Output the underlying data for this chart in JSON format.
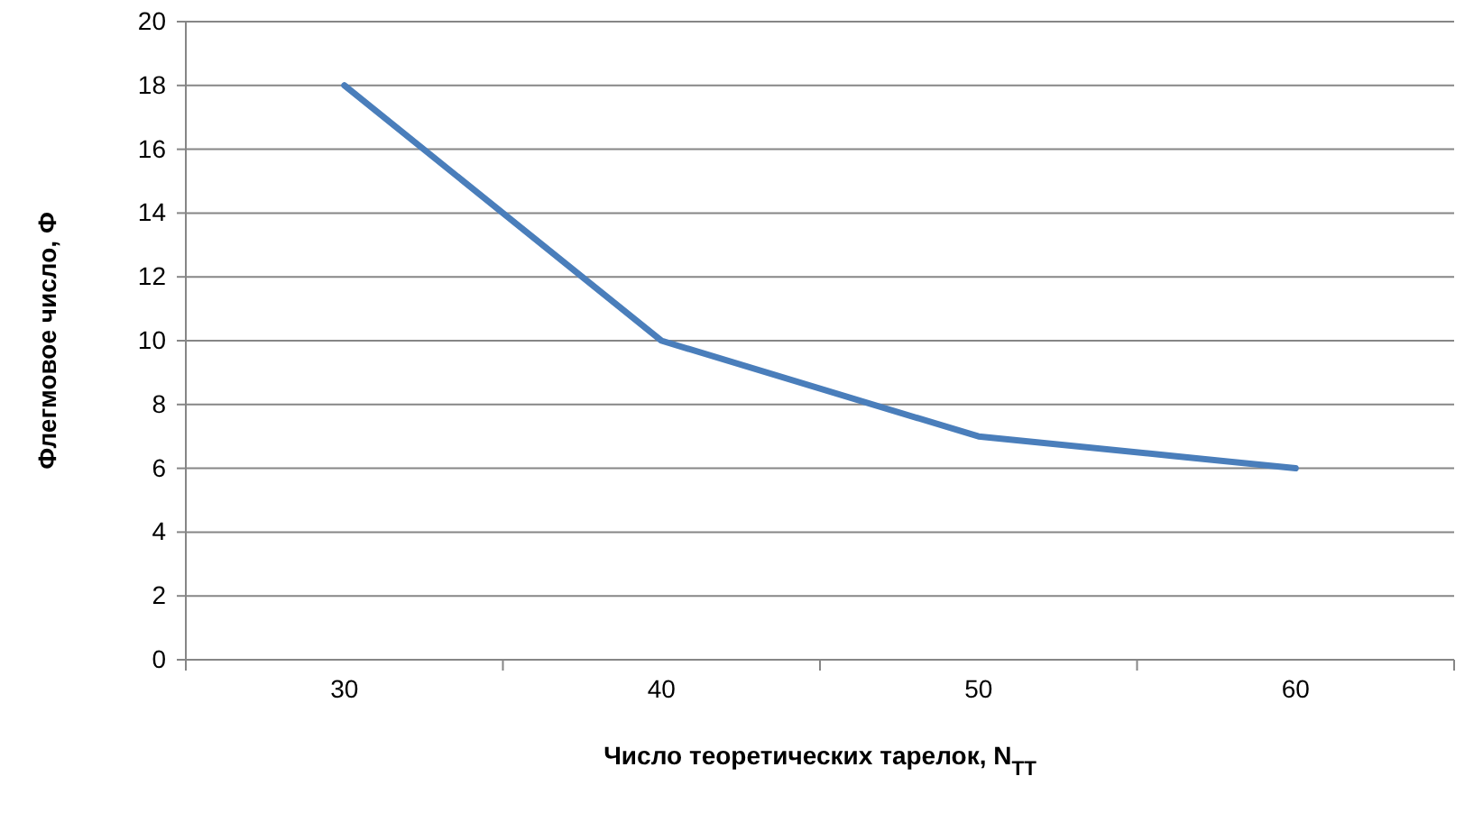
{
  "chart_data": {
    "type": "line",
    "xlabel": "Число теоретических тарелок, N$_{ТТ}$",
    "ylabel": "Флегмовое число, Ф",
    "categories": [
      "30",
      "40",
      "50",
      "60"
    ],
    "series": [
      {
        "color": "#4a7ebb",
        "values": [
          18,
          10,
          7,
          6
        ]
      }
    ],
    "ylim": [
      0,
      20
    ],
    "yticks": [
      0,
      2,
      4,
      6,
      8,
      10,
      12,
      14,
      16,
      18,
      20
    ],
    "grid": "y",
    "marker": "none",
    "line_style": "solid"
  }
}
